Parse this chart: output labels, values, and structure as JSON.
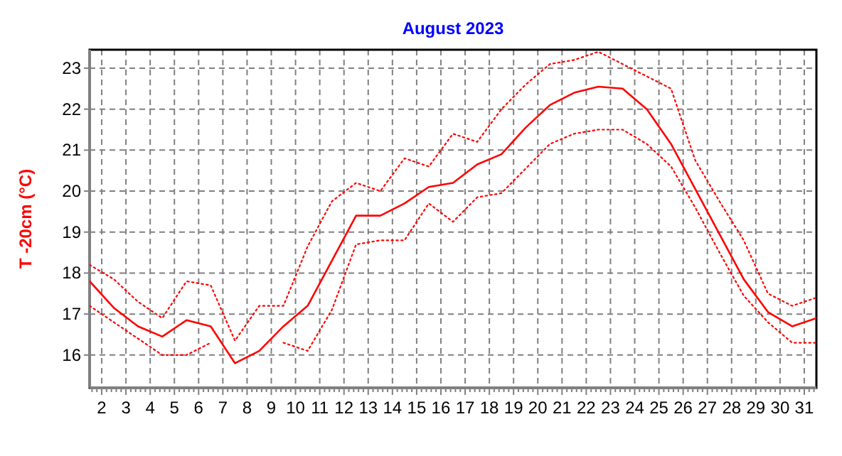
{
  "chart_data": {
    "type": "line",
    "title": "August 2023",
    "ylabel": "T -20cm (°C)",
    "x": [
      1.5,
      2.5,
      3.5,
      4.5,
      5.5,
      6.5,
      7.5,
      8.5,
      9.5,
      10.5,
      11.5,
      12.5,
      13.5,
      14.5,
      15.5,
      16.5,
      17.5,
      18.5,
      19.5,
      20.5,
      21.5,
      22.5,
      23.5,
      24.5,
      25.5,
      26.5,
      27.5,
      28.5,
      29.5,
      30.5,
      31.5
    ],
    "xlim": [
      1.5,
      31.5
    ],
    "xticks": [
      2,
      3,
      4,
      5,
      6,
      7,
      8,
      9,
      10,
      11,
      12,
      13,
      14,
      15,
      16,
      17,
      18,
      19,
      20,
      21,
      22,
      23,
      24,
      25,
      26,
      27,
      28,
      29,
      30,
      31
    ],
    "ylim": [
      15.2,
      23.45
    ],
    "yticks": [
      16,
      17,
      18,
      19,
      20,
      21,
      22,
      23
    ],
    "grid": true,
    "series": [
      {
        "color": "#ff0000",
        "line_style": "dotted",
        "values": [
          18.2,
          17.85,
          17.3,
          16.9,
          17.8,
          17.7,
          16.35,
          17.2,
          17.2,
          18.65,
          19.75,
          20.2,
          20.0,
          20.8,
          20.6,
          21.4,
          21.2,
          22.0,
          22.6,
          23.1,
          23.2,
          23.4,
          23.1,
          22.8,
          22.5,
          20.75,
          19.75,
          18.8,
          17.5,
          17.2,
          17.4
        ]
      },
      {
        "color": "#ff0000",
        "line_style": "solid",
        "values": [
          17.8,
          17.15,
          16.7,
          16.45,
          16.85,
          16.7,
          15.8,
          16.1,
          16.7,
          17.2,
          18.3,
          19.4,
          19.4,
          19.7,
          20.1,
          20.2,
          20.65,
          20.9,
          21.55,
          22.1,
          22.4,
          22.55,
          22.5,
          22.0,
          21.15,
          20.05,
          18.95,
          17.85,
          17.05,
          16.7,
          16.9
        ]
      },
      {
        "color": "#ff0000",
        "line_style": "dotted",
        "values": [
          17.2,
          16.8,
          16.4,
          16.0,
          16.0,
          16.3,
          null,
          null,
          16.3,
          16.1,
          17.1,
          18.7,
          18.8,
          18.8,
          19.7,
          19.25,
          19.85,
          19.95,
          20.55,
          21.15,
          21.4,
          21.5,
          21.5,
          21.15,
          20.6,
          19.6,
          18.5,
          17.45,
          16.8,
          16.3,
          16.3
        ]
      }
    ]
  }
}
